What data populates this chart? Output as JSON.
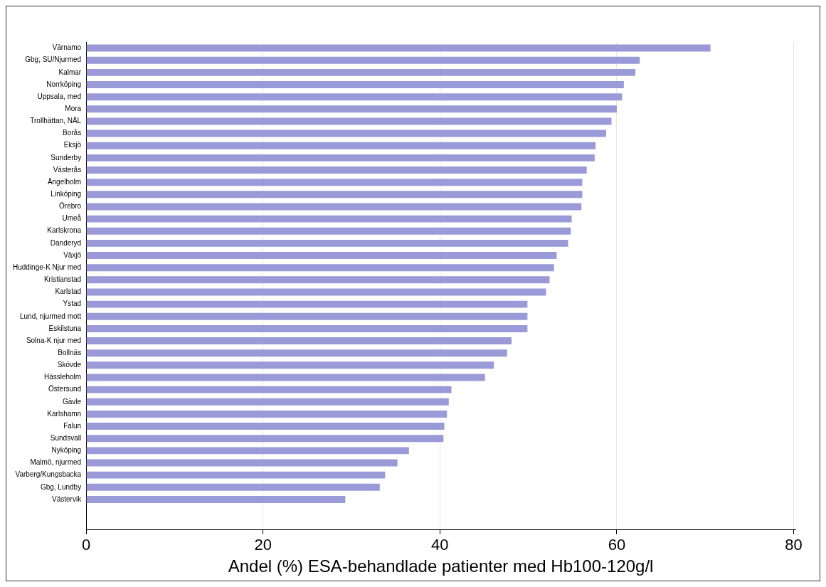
{
  "chart_data": {
    "type": "bar",
    "orientation": "horizontal",
    "xlabel": "Andel (%) ESA-behandlade patienter med Hb100-120g/l",
    "categories": [
      "Värnamo",
      "Gbg, SU/Njurmed",
      "Kalmar",
      "Norrköping",
      "Uppsala, med",
      "Mora",
      "Trollhättan, NÄL",
      "Borås",
      "Eksjö",
      "Sunderby",
      "Västerås",
      "Ängelholm",
      "Linköping",
      "Örebro",
      "Umeå",
      "Karlskrona",
      "Danderyd",
      "Växjö",
      "Huddinge-K Njur med",
      "Kristianstad",
      "Karlstad",
      "Ystad",
      "Lund, njurmed mott",
      "Eskilstuna",
      "Solna-K njur med",
      "Bollnäs",
      "Skövde",
      "Hässleholm",
      "Östersund",
      "Gävle",
      "Karlshamn",
      "Falun",
      "Sundsvall",
      "Nyköping",
      "Malmö, njurmed",
      "Varberg/Kungsbacka",
      "Gbg, Lundby",
      "Västervik"
    ],
    "values": [
      70.6,
      62.6,
      62.1,
      60.8,
      60.6,
      60.0,
      59.4,
      58.8,
      57.6,
      57.5,
      56.6,
      56.1,
      56.1,
      56.0,
      54.9,
      54.8,
      54.5,
      53.2,
      52.9,
      52.4,
      52.0,
      49.9,
      49.9,
      49.9,
      48.1,
      47.6,
      46.1,
      45.1,
      41.3,
      41.0,
      40.8,
      40.5,
      40.4,
      36.5,
      35.2,
      33.8,
      33.2,
      29.3
    ],
    "color": "#9a9ad8",
    "xlim": [
      0,
      80.2
    ],
    "xticks": [
      0,
      20,
      40,
      60,
      80
    ],
    "grid": "x",
    "legend": false
  }
}
